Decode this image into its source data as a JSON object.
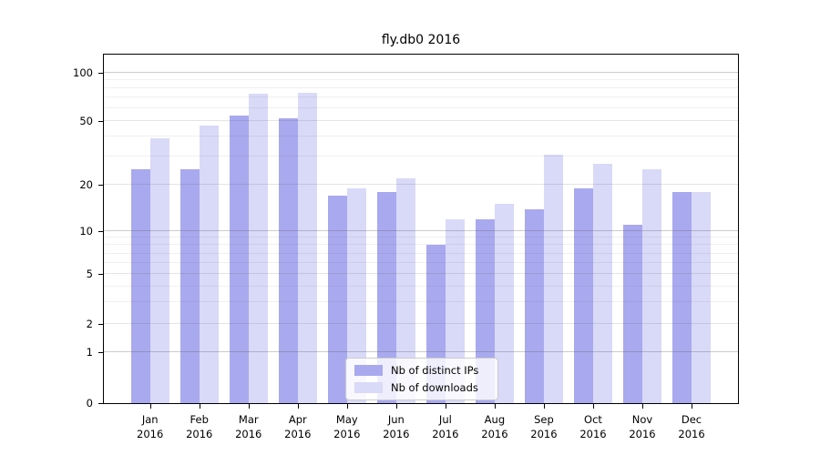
{
  "title": "fly.db0 2016",
  "chart_data": {
    "type": "bar",
    "title": "fly.db0 2016",
    "categories": [
      "Jan 2016",
      "Feb 2016",
      "Mar 2016",
      "Apr 2016",
      "May 2016",
      "Jun 2016",
      "Jul 2016",
      "Aug 2016",
      "Sep 2016",
      "Oct 2016",
      "Nov 2016",
      "Dec 2016"
    ],
    "series": [
      {
        "name": "Nb of distinct IPs",
        "color": "#a9a9ef",
        "values": [
          25,
          25,
          54,
          52,
          17,
          18,
          8,
          12,
          14,
          19,
          11,
          18
        ]
      },
      {
        "name": "Nb of downloads",
        "color": "#d9d9f8",
        "values": [
          39,
          47,
          74,
          75,
          19,
          22,
          12,
          15,
          31,
          27,
          25,
          18
        ]
      }
    ],
    "yscale": "symlog",
    "ylim": [
      0,
      130
    ],
    "y_ticks": [
      0,
      1,
      2,
      5,
      10,
      20,
      50,
      100
    ],
    "y_minor_ticks": [
      3,
      4,
      6,
      7,
      8,
      9,
      30,
      40,
      60,
      70,
      80,
      90
    ],
    "grid": true,
    "legend_position": "lower center"
  },
  "colors": {
    "axis": "#000000",
    "grid": "#555555",
    "background": "#ffffff"
  }
}
